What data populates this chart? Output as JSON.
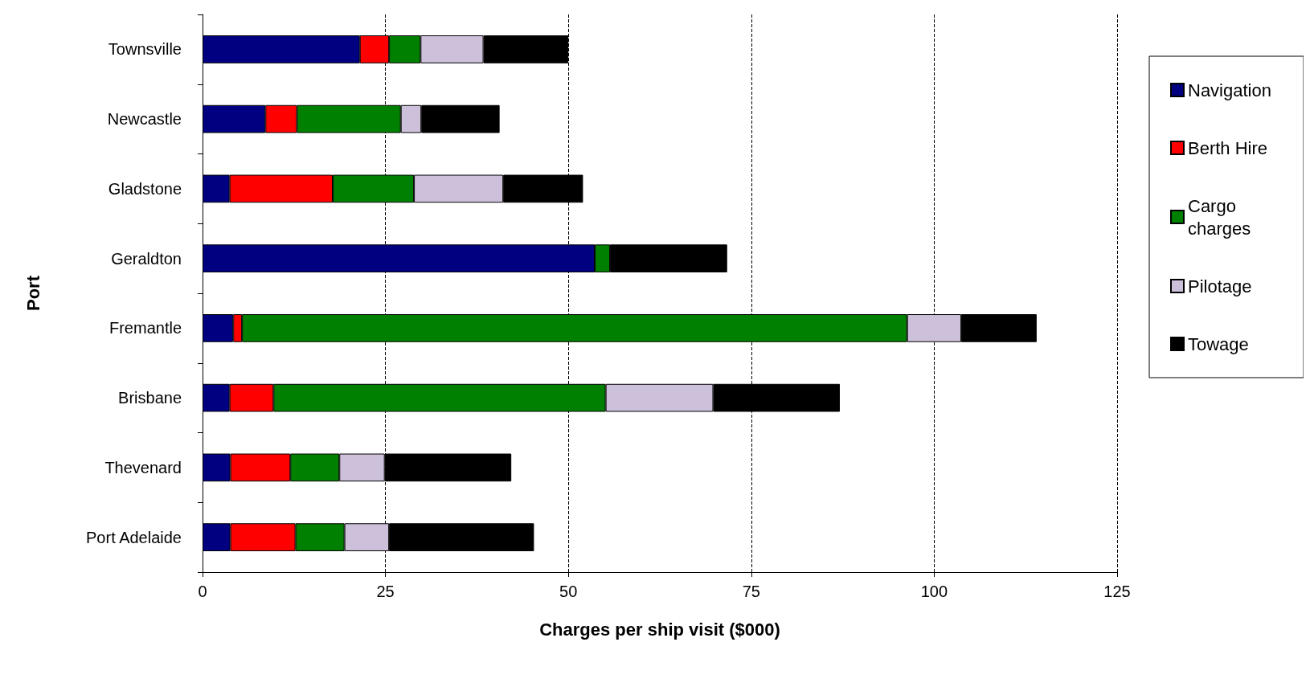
{
  "chart_data": {
    "type": "bar",
    "orientation": "horizontal",
    "stacked": true,
    "xlabel": "Charges per ship visit ($000)",
    "ylabel": "Port",
    "categories": [
      "Townsville",
      "Newcastle",
      "Gladstone",
      "Geraldton",
      "Fremantle",
      "Brisbane",
      "Thevenard",
      "Port Adelaide"
    ],
    "series": [
      {
        "name": "Navigation",
        "color": "#000080",
        "values": [
          21.5,
          8.6,
          3.7,
          53.6,
          4.2,
          3.7,
          3.8,
          3.8
        ]
      },
      {
        "name": "Berth Hire",
        "color": "#ff0000",
        "values": [
          4,
          4.3,
          14.1,
          0,
          1.2,
          6,
          8.2,
          8.9
        ]
      },
      {
        "name": "Cargo charges",
        "color": "#008000",
        "values": [
          4.3,
          14.2,
          11.1,
          2.1,
          90.9,
          45.4,
          6.7,
          6.7
        ]
      },
      {
        "name": "Pilotage",
        "color": "#ccc0da",
        "values": [
          8.6,
          2.8,
          12.2,
          0,
          7.4,
          14.7,
          6.2,
          6.1
        ]
      },
      {
        "name": "Towage",
        "color": "#000000",
        "values": [
          11.6,
          10.7,
          10.9,
          16,
          10.3,
          17.3,
          17.3,
          19.8
        ]
      }
    ],
    "xlim": [
      0,
      125
    ],
    "xticks": [
      0,
      25,
      50,
      75,
      100,
      125
    ],
    "grid": "x",
    "legend": "right"
  }
}
